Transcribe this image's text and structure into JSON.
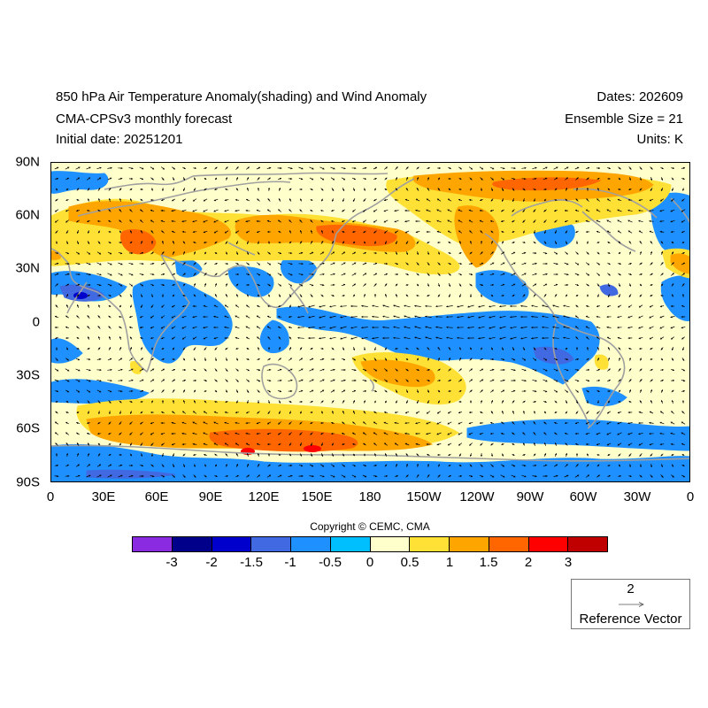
{
  "header": {
    "title": "850 hPa Air Temperature Anomaly(shading) and Wind Anomaly",
    "subtitle": "CMA-CPSv3 monthly forecast",
    "initial_date": "Initial date: 20251201",
    "dates": "Dates: 202609",
    "ensemble": "Ensemble Size = 21",
    "units": "Units: K"
  },
  "axes": {
    "lat_labels": [
      "90N",
      "60N",
      "30N",
      "0",
      "30S",
      "60S",
      "90S"
    ],
    "lon_labels": [
      "0",
      "30E",
      "60E",
      "90E",
      "120E",
      "150E",
      "180",
      "150W",
      "120W",
      "90W",
      "60W",
      "30W",
      "0"
    ]
  },
  "copyright": "Copyright © CEMC, CMA",
  "colorbar": {
    "colors": [
      "#8a2be2",
      "#00008b",
      "#0000cd",
      "#4169e1",
      "#1e90ff",
      "#00bfff",
      "#ffffcc",
      "#ffe135",
      "#ffa500",
      "#ff6600",
      "#ff0000",
      "#c00000"
    ],
    "labels": [
      "-3",
      "-2",
      "-1.5",
      "-1",
      "-0.5",
      "0",
      "0.5",
      "1",
      "1.5",
      "2",
      "3"
    ]
  },
  "reference_vector": {
    "value": "2",
    "label": "Reference Vector"
  },
  "colors": {
    "background": "#ffffcc",
    "coast": "#a0a0a0",
    "arrow": "#000000"
  }
}
